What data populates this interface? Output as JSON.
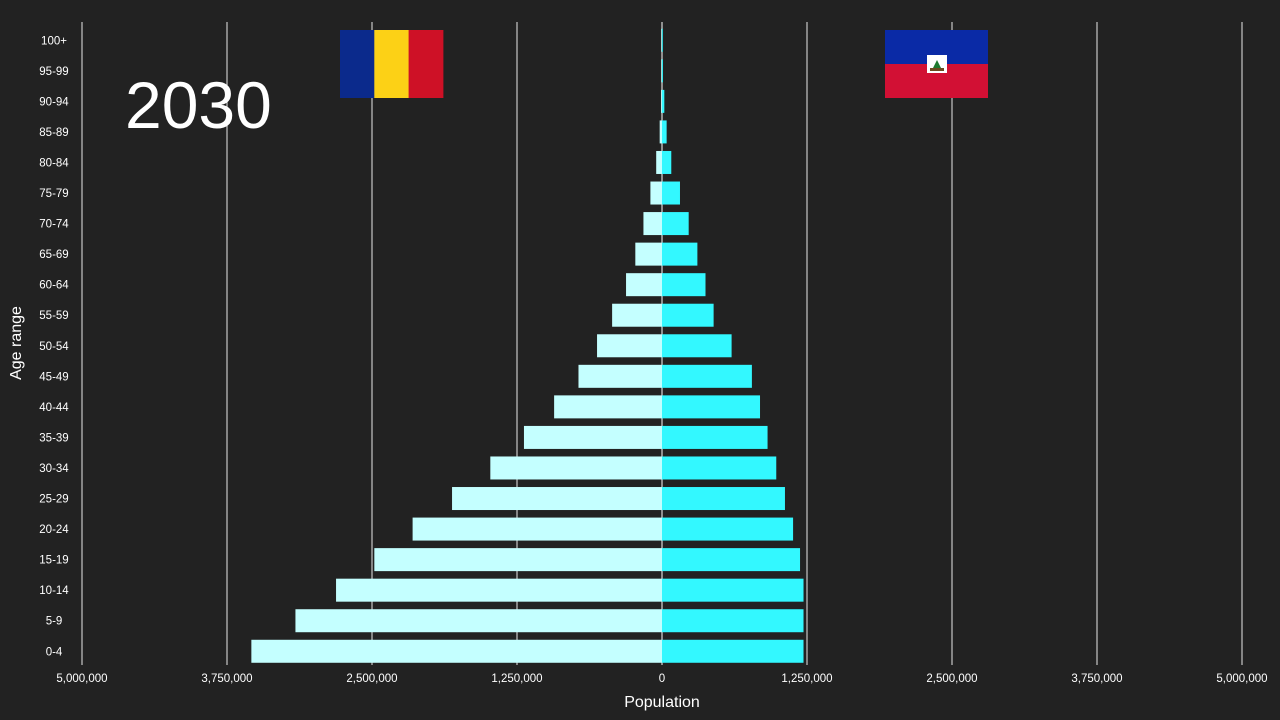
{
  "chart_data": {
    "type": "bar",
    "orientation": "horizontal",
    "layout": "population-pyramid",
    "year": "2030",
    "xlabel": "Population",
    "ylabel": "Age range",
    "xlim": [
      -5000000,
      5000000
    ],
    "x_ticks": [
      -5000000,
      -3750000,
      -2500000,
      -1250000,
      0,
      1250000,
      2500000,
      3750000,
      5000000
    ],
    "x_tick_labels": [
      "5,000,000",
      "3,750,000",
      "2,500,000",
      "1,250,000",
      "0",
      "1,250,000",
      "2,500,000",
      "3,750,000",
      "5,000,000"
    ],
    "grid": true,
    "categories": [
      "0-4",
      "5-9",
      "10-14",
      "15-19",
      "20-24",
      "25-29",
      "30-34",
      "35-39",
      "40-44",
      "45-49",
      "50-54",
      "55-59",
      "60-64",
      "65-69",
      "70-74",
      "75-79",
      "80-84",
      "85-89",
      "90-94",
      "95-99",
      "100+"
    ],
    "series": [
      {
        "side": "left",
        "flag": "romania-flag",
        "color": "#c4ffff",
        "values": [
          3540000,
          3160000,
          2810000,
          2480000,
          2150000,
          1810000,
          1480000,
          1190000,
          930000,
          720000,
          560000,
          430000,
          310000,
          230000,
          160000,
          100000,
          50000,
          20000,
          8000,
          3000,
          1000
        ]
      },
      {
        "side": "right",
        "flag": "haiti-flag",
        "color": "#33f8ff",
        "values": [
          1220000,
          1220000,
          1220000,
          1190000,
          1130000,
          1060000,
          985000,
          910000,
          845000,
          775000,
          600000,
          445000,
          375000,
          305000,
          230000,
          155000,
          80000,
          40000,
          20000,
          8000,
          4000
        ]
      }
    ]
  },
  "flags": {
    "romania": [
      "#0b2a8c",
      "#fcd116",
      "#ce1126"
    ],
    "haiti": [
      "#0a2aa6",
      "#d21034"
    ]
  }
}
